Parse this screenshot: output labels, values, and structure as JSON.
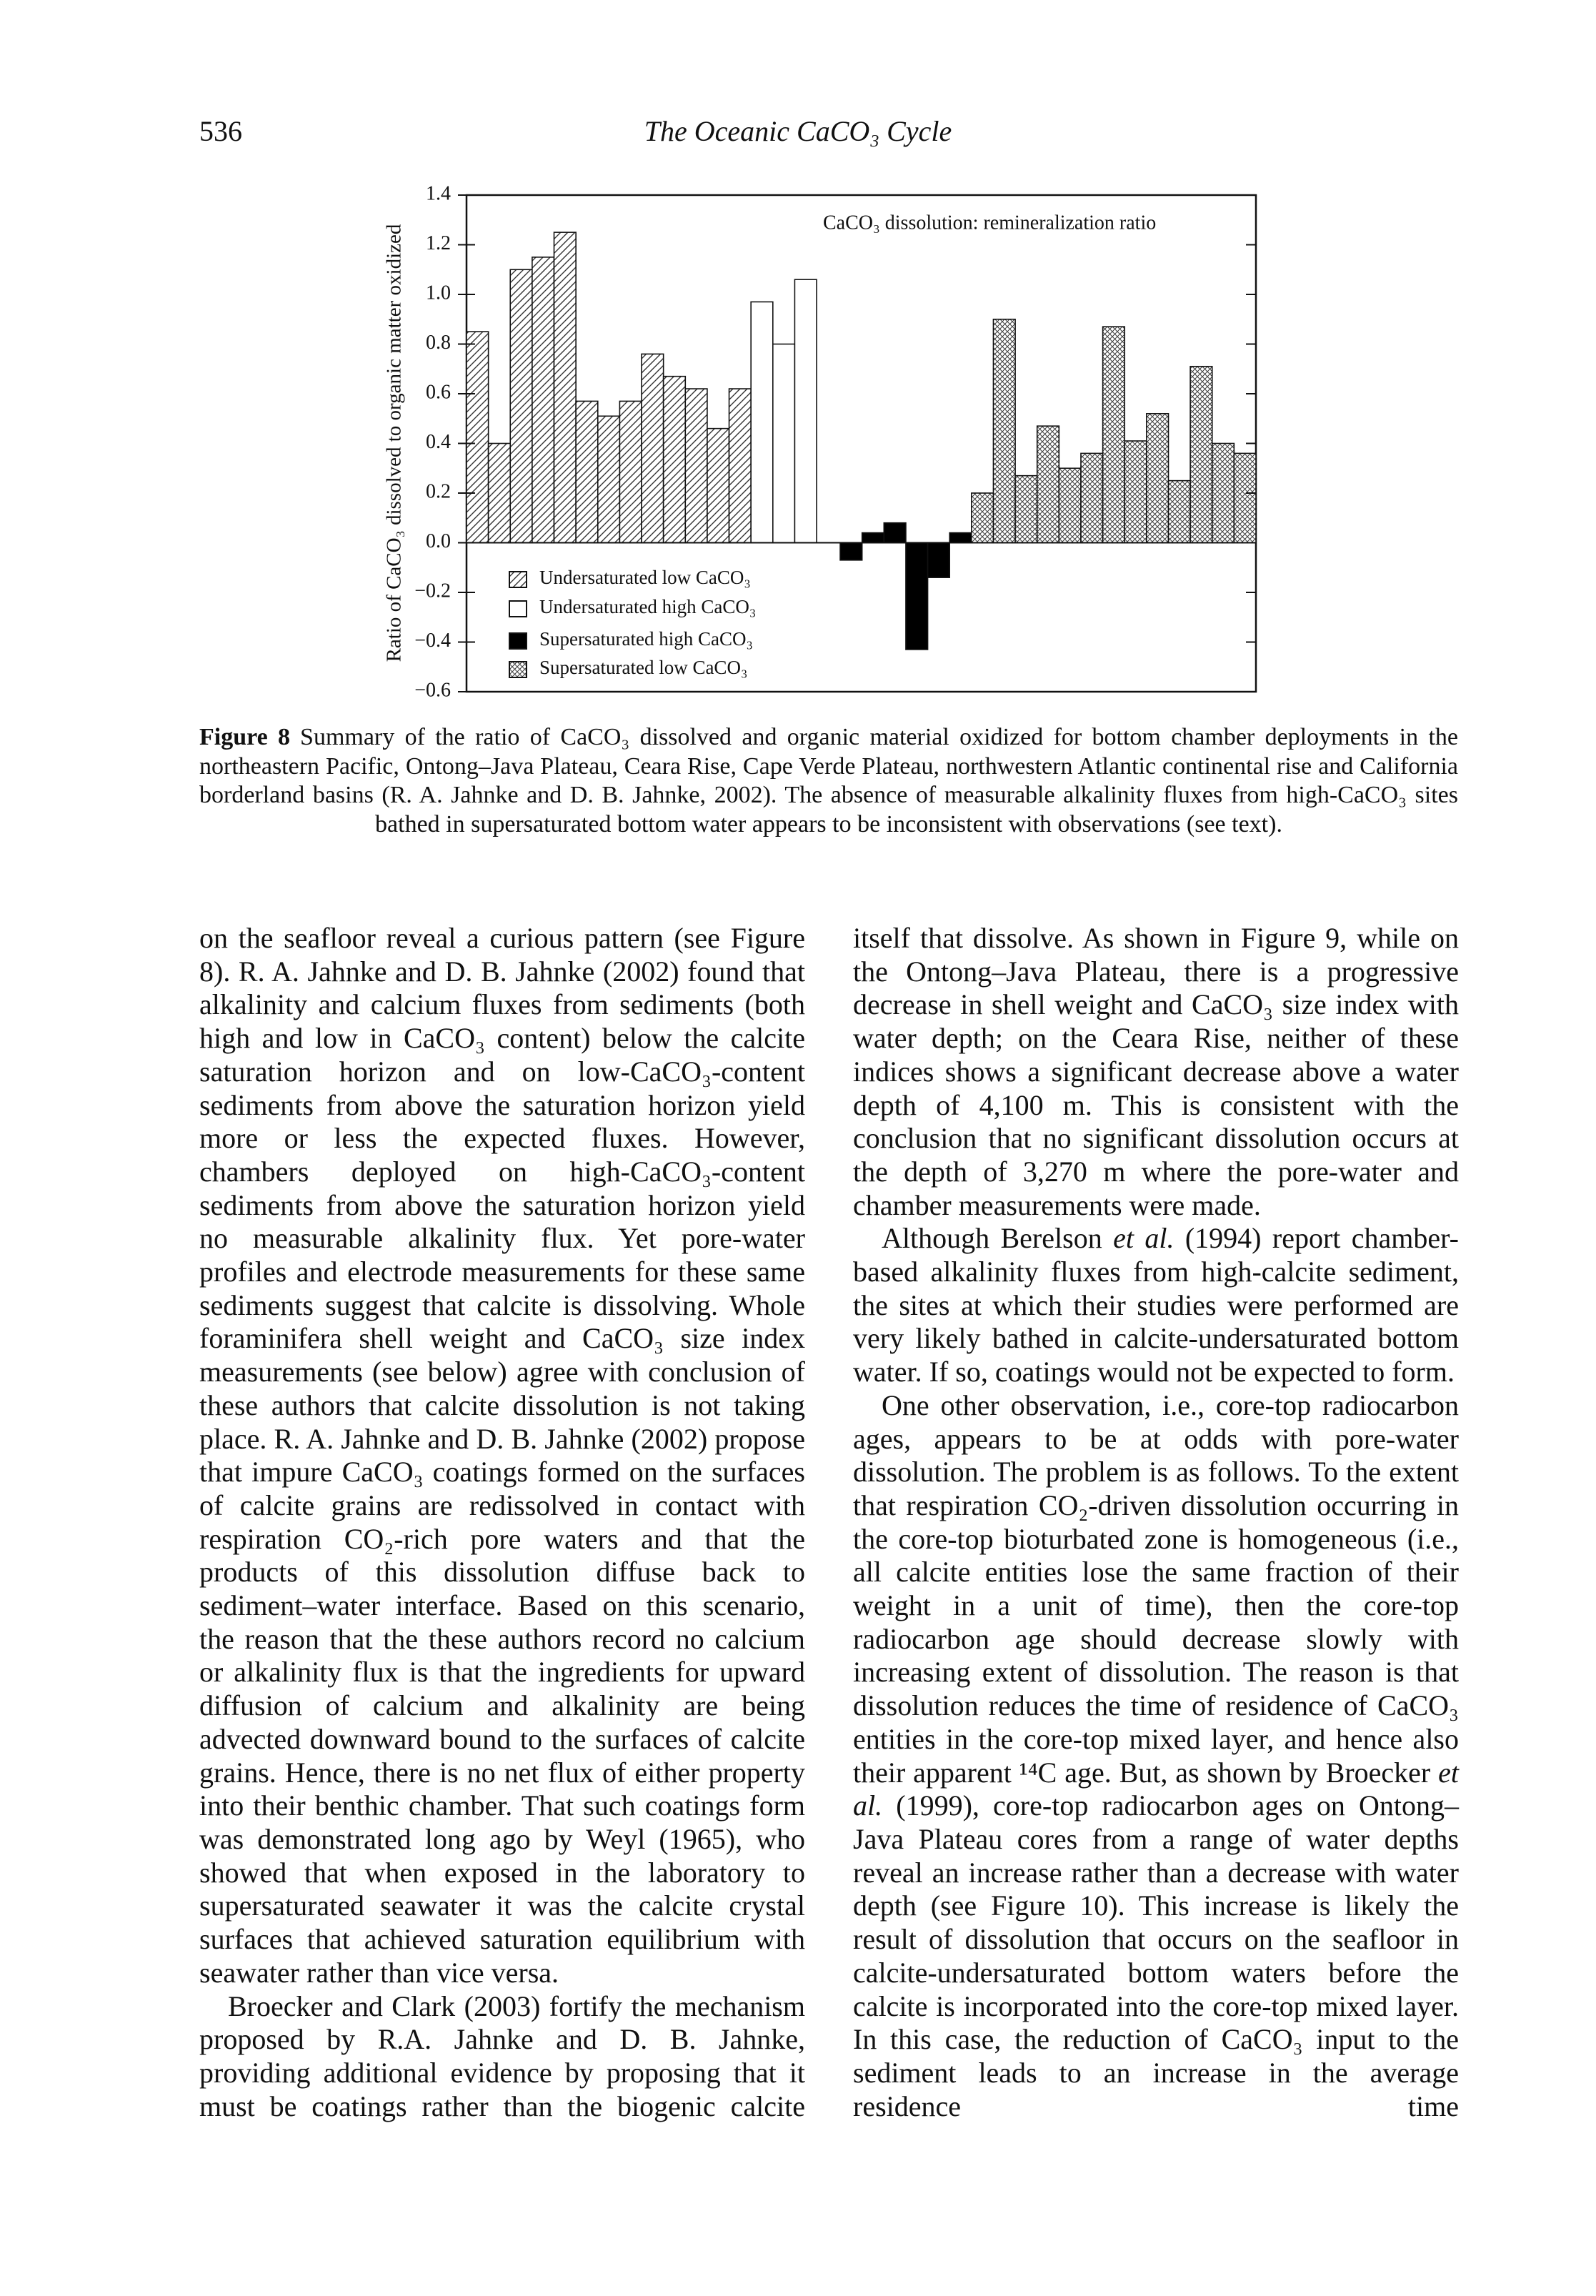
{
  "header": {
    "page_number": "536",
    "running_title": "The Oceanic CaCO₃ Cycle"
  },
  "chart_data": {
    "type": "bar",
    "annotation": "CaCO₃ dissolution: remineralization ratio",
    "y_label": "Ratio of CaCO₃ dissolved to organic matter oxidized",
    "ylim": [
      -0.6,
      1.4
    ],
    "yticks": [
      1.4,
      1.2,
      {
        "value": 1,
        "label": "1.0"
      },
      0.8,
      0.6,
      0.4,
      0.2,
      {
        "value": 0,
        "label": "0.0"
      },
      {
        "value": -0.2,
        "label": "−0.2"
      },
      {
        "value": -0.4,
        "label": "−0.4"
      },
      {
        "value": -0.6,
        "label": "−0.6"
      }
    ],
    "series": [
      {
        "name": "Undersaturated low CaCO₃",
        "color": "hatch",
        "values": [
          0.85,
          0.4,
          1.1,
          1.15,
          1.25,
          0.57,
          0.51,
          0.57,
          0.76,
          0.67,
          0.62,
          0.46,
          0.62
        ]
      },
      {
        "name": "Undersaturated high CaCO₃",
        "color": "#ffffff",
        "values": [
          0.97,
          0.8,
          1.06
        ]
      },
      {
        "name": "Supersaturated high CaCO₃",
        "color": "#000000",
        "values": [
          -0.07,
          0.04,
          0.08,
          -0.43,
          -0.14,
          0.04
        ]
      },
      {
        "name": "Supersaturated low CaCO₃",
        "color": "crosshatch",
        "values": [
          0.2,
          0.9,
          0.27,
          0.47,
          0.3,
          0.36,
          0.87,
          0.41,
          0.52,
          0.25,
          0.71,
          0.4,
          0.36
        ]
      }
    ]
  },
  "caption": {
    "label": "Figure 8",
    "text": "Summary of the ratio of CaCO₃ dissolved and organic material oxidized for bottom chamber deployments in the northeastern Pacific, Ontong–Java Plateau, Ceara Rise, Cape Verde Plateau, northwestern Atlantic continental rise and California borderland basins (R. A. Jahnke and D. B. Jahnke, 2002). The absence of measurable alkalinity fluxes from high-CaCO₃ sites bathed in supersaturated bottom water appears to be inconsistent with observations (see text)."
  },
  "columns": [
    [
      [
        "on the seafloor reveal a curious pattern (see Figure 8). R. A. Jahnke and D. B. Jahnke (2002) found that alkalinity and calcium fluxes from sediments (both high and low in CaCO₃ content) below the calcite saturation horizon and on low-CaCO₃-content sediments from above the saturation horizon yield more or less the expected fluxes. However, chambers deployed on high-CaCO₃-content sediments from above the saturation horizon yield no measurable alkalinity flux. Yet pore-water profiles and electrode measurements for these same sediments suggest that calcite is dissolving. Whole foraminifera shell weight and CaCO₃ size index measurements (see below) agree with conclusion of these authors that calcite dissolution is not taking place. R. A. Jahnke and D. B. Jahnke (2002) propose that impure CaCO₃ coatings formed on the surfaces of calcite grains are redissolved in contact with respiration CO₂-rich pore waters and that the products of this dissolution diffuse back to sediment–water interface. Based on this scenario, the reason that the these authors record no calcium or alkalinity flux is that the ingredients for upward diffusion of calcium and alkalinity are being advected downward bound to the surfaces of calcite grains. Hence, there is no net flux of either property into their benthic chamber. That such coatings form was demonstrated long ago by Weyl (1965), who showed that when exposed in the laboratory to supersaturated seawater it was the calcite crystal surfaces that achieved saturation equilibrium with seawater rather than vice versa."
      ],
      [
        "Broecker and Clark (2003) fortify the mechanism proposed by R.A. Jahnke and D. B. Jahnke, providing additional evidence by proposing that it must be coatings rather than the biogenic calcite"
      ]
    ],
    [
      [
        "itself that dissolve. As shown in Figure 9, while on the Ontong–Java Plateau, there is a progressive decrease in shell weight and CaCO₃ size index with water depth; on the Ceara Rise, neither of these indices shows a significant decrease above a water depth of 4,100 m. This is consistent with the conclusion that no significant dissolution occurs at the depth of 3,270 m where the pore-water and chamber measurements were made."
      ],
      [
        "Although Berelson ",
        {
          "text": "et al.",
          "italic": true
        },
        " (1994) report chamber-based alkalinity fluxes from high-calcite sediment, the sites at which their studies were performed are very likely bathed in calcite-undersaturated bottom water. If so, coatings would not be expected to form."
      ],
      [
        "One other observation, i.e., core-top radiocarbon ages, appears to be at odds with pore-water dissolution. The problem is as follows. To the extent that respiration CO₂-driven dissolution occurring in the core-top bioturbated zone is homogeneous (i.e., all calcite entities lose the same fraction of their weight in a unit of time), then the core-top radiocarbon age should decrease slowly with increasing extent of dissolution. The reason is that dissolution reduces the time of residence of CaCO₃ entities in the core-top mixed layer, and hence also their apparent ¹⁴C age. But, as shown by Broecker ",
        {
          "text": "et al.",
          "italic": true
        },
        " (1999), core-top radiocarbon ages on Ontong–Java Plateau cores from a range of water depths reveal an increase rather than a decrease with water depth (see Figure 10). This increase is likely the result of dissolution that occurs on the seafloor in calcite-undersaturated bottom waters before the calcite is incorporated into the core-top mixed layer. In this case, the reduction of CaCO₃ input to the sediment leads to an increase in the average residence time"
      ]
    ]
  ]
}
